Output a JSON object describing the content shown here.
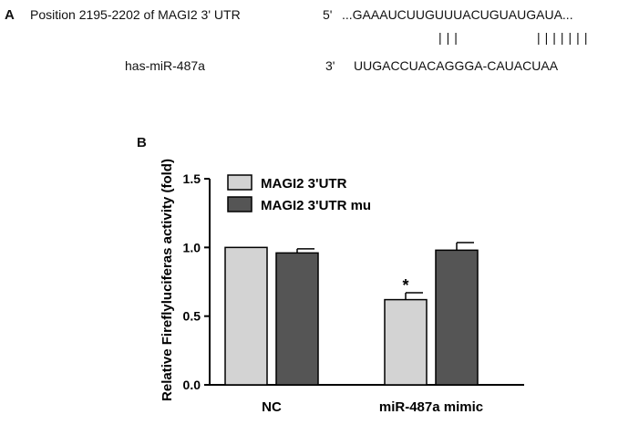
{
  "panel_a": {
    "label": "A",
    "row1_label": "Position 2195-2202 of MAGI2 3' UTR",
    "row1_end": "5'",
    "row1_seq": "...GAAAUCUUGUUUACUGUAUGAUA...",
    "pair_left": "|||",
    "pair_right": "|||||||",
    "row2_label": "has-miR-487a",
    "row2_end": "3'",
    "row2_seq": "UUGACCUACAGGGA-CAUACUAA"
  },
  "chart_data": {
    "panel_label": "B",
    "type": "bar",
    "categories": [
      "NC",
      "miR-487a mimic"
    ],
    "ylabel": "Relative Fireflyluciferas activity (fold)",
    "ylim": [
      0,
      1.5
    ],
    "yticks": [
      "0.0",
      "0.5",
      "1.0",
      "1.5"
    ],
    "legend_position": "top-left",
    "series": [
      {
        "name": "MAGI2 3'UTR",
        "color": "#d3d3d3",
        "values": [
          1.0,
          0.62
        ],
        "errors": [
          0.0,
          0.05
        ]
      },
      {
        "name": "MAGI2 3'UTR mu",
        "color": "#555555",
        "values": [
          0.96,
          0.98
        ],
        "errors": [
          0.03,
          0.055
        ]
      }
    ],
    "annotations": [
      {
        "category": 1,
        "series": 0,
        "text": "*"
      }
    ]
  }
}
